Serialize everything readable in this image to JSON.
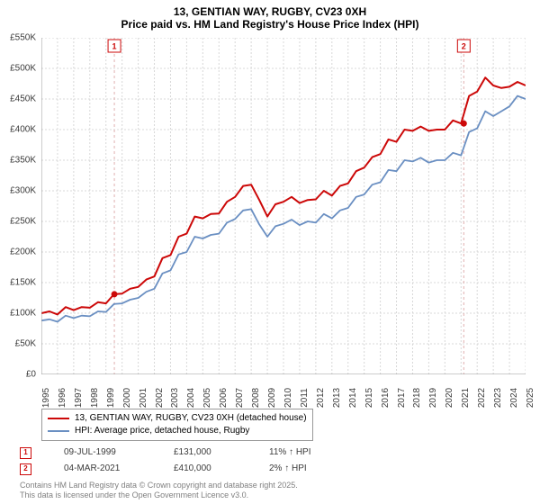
{
  "title_line1": "13, GENTIAN WAY, RUGBY, CV23 0XH",
  "title_line2": "Price paid vs. HM Land Registry's House Price Index (HPI)",
  "chart": {
    "type": "line",
    "background_color": "#ffffff",
    "grid_color": "#d8d8d8",
    "grid_dash": "2,2",
    "axis_color": "#999999",
    "ylim": [
      0,
      550
    ],
    "ytick_step": 50,
    "yticks": [
      "£0",
      "£50K",
      "£100K",
      "£150K",
      "£200K",
      "£250K",
      "£300K",
      "£350K",
      "£400K",
      "£450K",
      "£500K",
      "£550K"
    ],
    "xlim": [
      1995,
      2025
    ],
    "xticks": [
      "1995",
      "1996",
      "1997",
      "1998",
      "1999",
      "2000",
      "2001",
      "2002",
      "2003",
      "2004",
      "2005",
      "2006",
      "2007",
      "2008",
      "2009",
      "2010",
      "2011",
      "2012",
      "2013",
      "2014",
      "2015",
      "2016",
      "2017",
      "2018",
      "2019",
      "2020",
      "2021",
      "2022",
      "2023",
      "2024",
      "2025"
    ],
    "series": [
      {
        "name": "13, GENTIAN WAY, RUGBY, CV23 0XH (detached house)",
        "color": "#cc0808",
        "width": 2,
        "data": [
          [
            1995,
            100
          ],
          [
            1995.5,
            103
          ],
          [
            1996,
            98
          ],
          [
            1996.5,
            110
          ],
          [
            1997,
            105
          ],
          [
            1997.5,
            110
          ],
          [
            1998,
            109
          ],
          [
            1998.5,
            118
          ],
          [
            1999,
            116
          ],
          [
            1999.5,
            131
          ],
          [
            2000,
            132
          ],
          [
            2000.5,
            140
          ],
          [
            2001,
            143
          ],
          [
            2001.5,
            155
          ],
          [
            2002,
            160
          ],
          [
            2002.5,
            190
          ],
          [
            2003,
            195
          ],
          [
            2003.5,
            225
          ],
          [
            2004,
            230
          ],
          [
            2004.5,
            258
          ],
          [
            2005,
            255
          ],
          [
            2005.5,
            262
          ],
          [
            2006,
            263
          ],
          [
            2006.5,
            282
          ],
          [
            2007,
            290
          ],
          [
            2007.5,
            308
          ],
          [
            2008,
            310
          ],
          [
            2008.5,
            285
          ],
          [
            2009,
            258
          ],
          [
            2009.5,
            278
          ],
          [
            2010,
            282
          ],
          [
            2010.5,
            290
          ],
          [
            2011,
            280
          ],
          [
            2011.5,
            285
          ],
          [
            2012,
            286
          ],
          [
            2012.5,
            300
          ],
          [
            2013,
            292
          ],
          [
            2013.5,
            308
          ],
          [
            2014,
            312
          ],
          [
            2014.5,
            332
          ],
          [
            2015,
            338
          ],
          [
            2015.5,
            355
          ],
          [
            2016,
            360
          ],
          [
            2016.5,
            384
          ],
          [
            2017,
            380
          ],
          [
            2017.5,
            400
          ],
          [
            2018,
            398
          ],
          [
            2018.5,
            405
          ],
          [
            2019,
            398
          ],
          [
            2019.5,
            400
          ],
          [
            2020,
            400
          ],
          [
            2020.5,
            415
          ],
          [
            2021,
            410
          ],
          [
            2021.5,
            455
          ],
          [
            2022,
            462
          ],
          [
            2022.5,
            485
          ],
          [
            2023,
            472
          ],
          [
            2023.5,
            468
          ],
          [
            2024,
            470
          ],
          [
            2024.5,
            478
          ],
          [
            2025,
            472
          ]
        ]
      },
      {
        "name": "HPI: Average price, detached house, Rugby",
        "color": "#6a8fc2",
        "width": 1.8,
        "data": [
          [
            1995,
            88
          ],
          [
            1995.5,
            90
          ],
          [
            1996,
            86
          ],
          [
            1996.5,
            96
          ],
          [
            1997,
            92
          ],
          [
            1997.5,
            96
          ],
          [
            1998,
            95
          ],
          [
            1998.5,
            103
          ],
          [
            1999,
            102
          ],
          [
            1999.5,
            115
          ],
          [
            2000,
            116
          ],
          [
            2000.5,
            122
          ],
          [
            2001,
            125
          ],
          [
            2001.5,
            135
          ],
          [
            2002,
            140
          ],
          [
            2002.5,
            165
          ],
          [
            2003,
            170
          ],
          [
            2003.5,
            196
          ],
          [
            2004,
            200
          ],
          [
            2004.5,
            225
          ],
          [
            2005,
            222
          ],
          [
            2005.5,
            228
          ],
          [
            2006,
            230
          ],
          [
            2006.5,
            248
          ],
          [
            2007,
            254
          ],
          [
            2007.5,
            268
          ],
          [
            2008,
            270
          ],
          [
            2008.5,
            245
          ],
          [
            2009,
            225
          ],
          [
            2009.5,
            242
          ],
          [
            2010,
            246
          ],
          [
            2010.5,
            253
          ],
          [
            2011,
            244
          ],
          [
            2011.5,
            250
          ],
          [
            2012,
            248
          ],
          [
            2012.5,
            262
          ],
          [
            2013,
            255
          ],
          [
            2013.5,
            268
          ],
          [
            2014,
            272
          ],
          [
            2014.5,
            290
          ],
          [
            2015,
            294
          ],
          [
            2015.5,
            310
          ],
          [
            2016,
            314
          ],
          [
            2016.5,
            334
          ],
          [
            2017,
            332
          ],
          [
            2017.5,
            350
          ],
          [
            2018,
            348
          ],
          [
            2018.5,
            354
          ],
          [
            2019,
            346
          ],
          [
            2019.5,
            350
          ],
          [
            2020,
            350
          ],
          [
            2020.5,
            362
          ],
          [
            2021,
            358
          ],
          [
            2021.5,
            396
          ],
          [
            2022,
            402
          ],
          [
            2022.5,
            430
          ],
          [
            2023,
            422
          ],
          [
            2023.5,
            430
          ],
          [
            2024,
            438
          ],
          [
            2024.5,
            455
          ],
          [
            2025,
            450
          ]
        ]
      }
    ],
    "markers": [
      {
        "n": 1,
        "x": 1999.52,
        "y": 131,
        "color": "#cc0808",
        "line_color": "#e0b0b0"
      },
      {
        "n": 2,
        "x": 2021.17,
        "y": 410,
        "color": "#cc0808",
        "line_color": "#e0b0b0"
      }
    ]
  },
  "legend": {
    "items": [
      {
        "label": "13, GENTIAN WAY, RUGBY, CV23 0XH (detached house)",
        "color": "#cc0808"
      },
      {
        "label": "HPI: Average price, detached house, Rugby",
        "color": "#6a8fc2"
      }
    ]
  },
  "marker_table": {
    "rows": [
      {
        "n": "1",
        "date": "09-JUL-1999",
        "price": "£131,000",
        "delta": "11% ↑ HPI",
        "color": "#cc0808"
      },
      {
        "n": "2",
        "date": "04-MAR-2021",
        "price": "£410,000",
        "delta": "2% ↑ HPI",
        "color": "#cc0808"
      }
    ]
  },
  "footer_line1": "Contains HM Land Registry data © Crown copyright and database right 2025.",
  "footer_line2": "This data is licensed under the Open Government Licence v3.0."
}
